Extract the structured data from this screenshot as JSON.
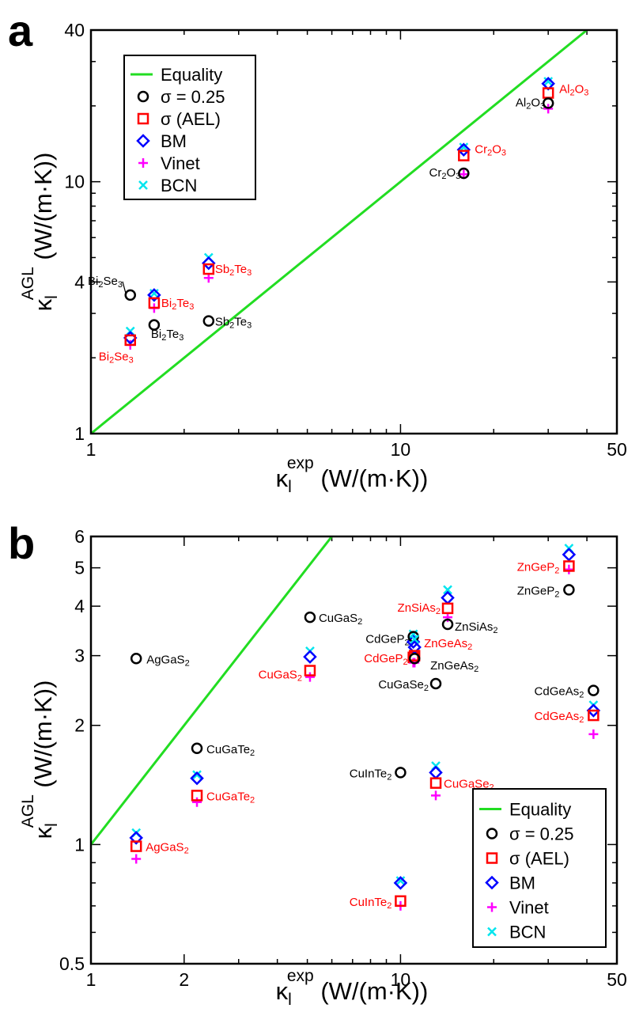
{
  "colors": {
    "equality": "#22dd22",
    "sigma025": "#000000",
    "sigmaAEL": "#ff0000",
    "BM": "#0000ff",
    "Vinet": "#ff00ff",
    "BCN": "#00e5ee",
    "label_exp": "#000000",
    "label_ael": "#ff0000"
  },
  "chart_data": [
    {
      "panel": "a",
      "type": "scatter",
      "xscale": "log",
      "yscale": "log",
      "xlim": [
        1,
        50
      ],
      "ylim": [
        1,
        40
      ],
      "xticks": [
        "1",
        "10",
        "50"
      ],
      "yticks": [
        "1",
        "4",
        "10",
        "40"
      ],
      "xlabel": {
        "base": "κ",
        "sub": "l",
        "sup": "exp",
        "unit": " (W/(m·K))"
      },
      "ylabel": {
        "base": "κ",
        "sub": "l",
        "sup": "AGL",
        "unit": " (W/(m·K))"
      },
      "legend": {
        "position": "top-left",
        "entries": [
          {
            "key": "equality",
            "label": "Equality"
          },
          {
            "key": "sigma025",
            "label": "σ = 0.25"
          },
          {
            "key": "sigmaAEL",
            "label": "σ (AEL)"
          },
          {
            "key": "BM",
            "label": "BM"
          },
          {
            "key": "Vinet",
            "label": "Vinet"
          },
          {
            "key": "BCN",
            "label": "BCN"
          }
        ]
      },
      "equality_line": [
        [
          1,
          1
        ],
        [
          40,
          40
        ]
      ],
      "materials": [
        {
          "name": "Bi2Se3",
          "x": 1.34,
          "sigma025": 3.55,
          "sigmaAEL": 2.35,
          "BM": 2.4,
          "Vinet": 2.25,
          "BCN": 2.55
        },
        {
          "name": "Bi2Te3",
          "x": 1.6,
          "sigma025": 2.7,
          "sigmaAEL": 3.3,
          "BM": 3.55,
          "Vinet": 3.15,
          "BCN": 3.6
        },
        {
          "name": "Sb2Te3",
          "x": 2.4,
          "sigma025": 2.8,
          "sigmaAEL": 4.5,
          "BM": 4.75,
          "Vinet": 4.15,
          "BCN": 5.0
        },
        {
          "name": "Cr2O3",
          "x": 16.0,
          "sigma025": 10.8,
          "sigmaAEL": 12.7,
          "BM": 13.4,
          "Vinet": 10.7,
          "BCN": 13.7
        },
        {
          "name": "Al2O3",
          "x": 30.0,
          "sigma025": 20.5,
          "sigmaAEL": 22.5,
          "BM": 24.5,
          "Vinet": 19.5,
          "BCN": 25.0
        }
      ],
      "annotations": [
        {
          "base": "Bi",
          "sub1": "2",
          "mid": "Se",
          "sub2": "3",
          "x": 1.0,
          "y": 3.9,
          "kind": "exp",
          "anchor": "end",
          "dx": 40,
          "dy": 0,
          "leader": [
            1.34,
            3.55
          ]
        },
        {
          "base": "Bi",
          "sub1": "2",
          "mid": "Se",
          "sub2": "3",
          "x": 1.34,
          "y": 2.1,
          "kind": "ael",
          "anchor": "middle",
          "dx": -18,
          "dy": 10
        },
        {
          "base": "Bi",
          "sub1": "2",
          "mid": "Te",
          "sub2": "3",
          "x": 1.6,
          "y": 3.3,
          "kind": "ael",
          "anchor": "start",
          "dx": 9,
          "dy": 5
        },
        {
          "base": "Bi",
          "sub1": "2",
          "mid": "Te",
          "sub2": "3",
          "x": 1.6,
          "y": 2.4,
          "kind": "exp",
          "anchor": "start",
          "dx": -4,
          "dy": 0
        },
        {
          "base": "Sb",
          "sub1": "2",
          "mid": "Te",
          "sub2": "3",
          "x": 2.4,
          "y": 4.5,
          "kind": "ael",
          "anchor": "start",
          "dx": 8,
          "dy": 5
        },
        {
          "base": "Sb",
          "sub1": "2",
          "mid": "Te",
          "sub2": "3",
          "x": 2.4,
          "y": 2.8,
          "kind": "exp",
          "anchor": "start",
          "dx": 8,
          "dy": 6
        },
        {
          "base": "Cr",
          "sub1": "2",
          "mid": "O",
          "sub2": "3",
          "x": 16.0,
          "y": 10.8,
          "kind": "exp",
          "anchor": "end",
          "dx": -4,
          "dy": 4
        },
        {
          "base": "Cr",
          "sub1": "2",
          "mid": "O",
          "sub2": "3",
          "x": 16.0,
          "y": 12.7,
          "kind": "ael",
          "anchor": "start",
          "dx": 14,
          "dy": -3
        },
        {
          "base": "Al",
          "sub1": "2",
          "mid": "O",
          "sub2": "3",
          "x": 30.0,
          "y": 20.5,
          "kind": "exp",
          "anchor": "end",
          "dx": -4,
          "dy": 4
        },
        {
          "base": "Al",
          "sub1": "2",
          "mid": "O",
          "sub2": "3",
          "x": 30.0,
          "y": 22.5,
          "kind": "ael",
          "anchor": "start",
          "dx": 14,
          "dy": 0
        }
      ]
    },
    {
      "panel": "b",
      "type": "scatter",
      "xscale": "log",
      "yscale": "log",
      "xlim": [
        1,
        50
      ],
      "ylim": [
        0.5,
        6
      ],
      "xticks": [
        "1",
        "2",
        "10",
        "50"
      ],
      "yticks": [
        "0.5",
        "1",
        "2",
        "3",
        "4",
        "5",
        "6"
      ],
      "xlabel": {
        "base": "κ",
        "sub": "l",
        "sup": "exp",
        "unit": " (W/(m·K))"
      },
      "ylabel": {
        "base": "κ",
        "sub": "l",
        "sup": "AGL",
        "unit": " (W/(m·K))"
      },
      "legend": {
        "position": "bottom-right",
        "entries": [
          {
            "key": "equality",
            "label": "Equality"
          },
          {
            "key": "sigma025",
            "label": "σ = 0.25"
          },
          {
            "key": "sigmaAEL",
            "label": "σ (AEL)"
          },
          {
            "key": "BM",
            "label": "BM"
          },
          {
            "key": "Vinet",
            "label": "Vinet"
          },
          {
            "key": "BCN",
            "label": "BCN"
          }
        ]
      },
      "equality_line": [
        [
          1,
          1
        ],
        [
          6,
          6
        ]
      ],
      "materials": [
        {
          "name": "AgGaS2",
          "x": 1.4,
          "sigma025": 2.95,
          "sigmaAEL": 0.99,
          "BM": 1.04,
          "Vinet": 0.92,
          "BCN": 1.07
        },
        {
          "name": "CuGaTe2",
          "x": 2.2,
          "sigma025": 1.75,
          "sigmaAEL": 1.33,
          "BM": 1.47,
          "Vinet": 1.28,
          "BCN": 1.5
        },
        {
          "name": "CuGaS2",
          "x": 5.1,
          "sigma025": 3.75,
          "sigmaAEL": 2.75,
          "BM": 2.98,
          "Vinet": 2.65,
          "BCN": 3.08
        },
        {
          "name": "CuInTe2",
          "x": 10.0,
          "sigma025": 1.52,
          "sigmaAEL": 0.72,
          "BM": 0.8,
          "Vinet": 0.7,
          "BCN": 0.81
        },
        {
          "name": "CdGeP2",
          "x": 11.0,
          "sigma025": 3.35,
          "sigmaAEL": 2.97,
          "BM": 3.25,
          "Vinet": 2.88,
          "BCN": 3.4
        },
        {
          "name": "ZnGeAs2",
          "x": 11.1,
          "sigma025": 2.95,
          "sigmaAEL": 3.0,
          "BM": 3.15,
          "Vinet": 2.88,
          "BCN": 3.3
        },
        {
          "name": "CuGaSe2",
          "x": 13.0,
          "sigma025": 2.55,
          "sigmaAEL": 1.43,
          "BM": 1.52,
          "Vinet": 1.33,
          "BCN": 1.58
        },
        {
          "name": "ZnSiAs2",
          "x": 14.2,
          "sigma025": 3.6,
          "sigmaAEL": 3.95,
          "BM": 4.2,
          "Vinet": 3.75,
          "BCN": 4.4
        },
        {
          "name": "ZnGeP2",
          "x": 35.0,
          "sigma025": 4.4,
          "sigmaAEL": 5.05,
          "BM": 5.4,
          "Vinet": 4.95,
          "BCN": 5.6
        },
        {
          "name": "CdGeAs2",
          "x": 42.0,
          "sigma025": 2.45,
          "sigmaAEL": 2.12,
          "BM": 2.18,
          "Vinet": 1.9,
          "BCN": 2.25
        }
      ],
      "annotations": [
        {
          "base": "AgGaS",
          "sub1": "2",
          "mid": "",
          "sub2": "",
          "x": 1.4,
          "y": 2.95,
          "kind": "exp",
          "anchor": "start",
          "dx": 13,
          "dy": 6
        },
        {
          "base": "AgGaS",
          "sub1": "2",
          "mid": "",
          "sub2": "",
          "x": 1.4,
          "y": 0.99,
          "kind": "ael",
          "anchor": "start",
          "dx": 12,
          "dy": 6
        },
        {
          "base": "CuGaTe",
          "sub1": "2",
          "mid": "",
          "sub2": "",
          "x": 2.2,
          "y": 1.75,
          "kind": "exp",
          "anchor": "start",
          "dx": 12,
          "dy": 6
        },
        {
          "base": "CuGaTe",
          "sub1": "2",
          "mid": "",
          "sub2": "",
          "x": 2.2,
          "y": 1.33,
          "kind": "ael",
          "anchor": "start",
          "dx": 12,
          "dy": 6
        },
        {
          "base": "CuGaS",
          "sub1": "2",
          "mid": "",
          "sub2": "",
          "x": 5.1,
          "y": 3.75,
          "kind": "exp",
          "anchor": "start",
          "dx": 11,
          "dy": 6
        },
        {
          "base": "CuGaS",
          "sub1": "2",
          "mid": "",
          "sub2": "",
          "x": 5.1,
          "y": 2.75,
          "kind": "ael",
          "anchor": "end",
          "dx": -10,
          "dy": 10
        },
        {
          "base": "CuInTe",
          "sub1": "2",
          "mid": "",
          "sub2": "",
          "x": 10.0,
          "y": 1.52,
          "kind": "exp",
          "anchor": "end",
          "dx": -11,
          "dy": 6
        },
        {
          "base": "CuInTe",
          "sub1": "2",
          "mid": "",
          "sub2": "",
          "x": 10.0,
          "y": 0.72,
          "kind": "ael",
          "anchor": "end",
          "dx": -11,
          "dy": 6
        },
        {
          "base": "CdGeP",
          "sub1": "2",
          "mid": "",
          "sub2": "",
          "x": 11.0,
          "y": 3.35,
          "kind": "exp",
          "anchor": "end",
          "dx": -5,
          "dy": 8
        },
        {
          "base": "CdGeP",
          "sub1": "2",
          "mid": "",
          "sub2": "",
          "x": 11.0,
          "y": 2.97,
          "kind": "ael",
          "anchor": "end",
          "dx": -7,
          "dy": 6
        },
        {
          "base": "ZnGeAs",
          "sub1": "2",
          "mid": "",
          "sub2": "",
          "x": 11.1,
          "y": 3.15,
          "kind": "ael",
          "anchor": "start",
          "dx": 12,
          "dy": 0
        },
        {
          "base": "ZnGeAs",
          "sub1": "2",
          "mid": "",
          "sub2": "",
          "x": 11.1,
          "y": 2.9,
          "kind": "exp",
          "anchor": "start",
          "dx": 20,
          "dy": 10
        },
        {
          "base": "CuGaSe",
          "sub1": "2",
          "mid": "",
          "sub2": "",
          "x": 13.0,
          "y": 2.55,
          "kind": "exp",
          "anchor": "end",
          "dx": -9,
          "dy": 6
        },
        {
          "base": "CuGaSe",
          "sub1": "2",
          "mid": "",
          "sub2": "",
          "x": 13.0,
          "y": 1.43,
          "kind": "ael",
          "anchor": "start",
          "dx": 10,
          "dy": 6
        },
        {
          "base": "ZnSiAs",
          "sub1": "2",
          "mid": "",
          "sub2": "",
          "x": 14.2,
          "y": 3.95,
          "kind": "ael",
          "anchor": "end",
          "dx": -9,
          "dy": 4
        },
        {
          "base": "ZnSiAs",
          "sub1": "2",
          "mid": "",
          "sub2": "",
          "x": 14.2,
          "y": 3.6,
          "kind": "exp",
          "anchor": "start",
          "dx": 9,
          "dy": 8
        },
        {
          "base": "ZnGeP",
          "sub1": "2",
          "mid": "",
          "sub2": "",
          "x": 35.0,
          "y": 5.05,
          "kind": "ael",
          "anchor": "end",
          "dx": -12,
          "dy": 6
        },
        {
          "base": "ZnGeP",
          "sub1": "2",
          "mid": "",
          "sub2": "",
          "x": 35.0,
          "y": 4.4,
          "kind": "exp",
          "anchor": "end",
          "dx": -12,
          "dy": 6
        },
        {
          "base": "CdGeAs",
          "sub1": "2",
          "mid": "",
          "sub2": "",
          "x": 42.0,
          "y": 2.45,
          "kind": "exp",
          "anchor": "end",
          "dx": -12,
          "dy": 6
        },
        {
          "base": "CdGeAs",
          "sub1": "2",
          "mid": "",
          "sub2": "",
          "x": 42.0,
          "y": 2.12,
          "kind": "ael",
          "anchor": "end",
          "dx": -12,
          "dy": 6
        }
      ]
    }
  ]
}
